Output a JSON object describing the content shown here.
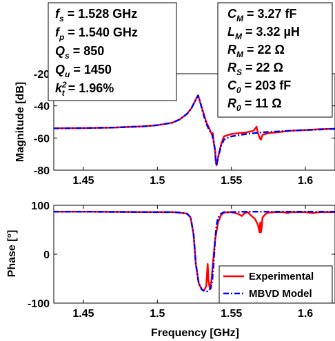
{
  "chart_data": [
    {
      "type": "line",
      "xlabel": "",
      "ylabel": "Magnitude [dB]",
      "xlim": [
        1.43,
        1.62
      ],
      "ylim": [
        -80,
        -20
      ],
      "xticks": [
        "1.45",
        "1.5",
        "1.55",
        "1.6"
      ],
      "yticks": [
        "-20",
        "-40",
        "-60",
        "-80"
      ],
      "grid": false,
      "parameters_box_left": [
        {
          "sym": "f",
          "sub": "s",
          "sup": "",
          "val": " = 1.528 GHz"
        },
        {
          "sym": "f",
          "sub": "p",
          "sup": "",
          "val": " = 1.540 GHz"
        },
        {
          "sym": "Q",
          "sub": "s",
          "sup": "",
          "val": " = 850"
        },
        {
          "sym": "Q",
          "sub": "u",
          "sup": "",
          "val": " = 1450"
        },
        {
          "sym": "k",
          "sub": "t",
          "sup": "2",
          "val": " = 1.96%"
        }
      ],
      "parameters_box_right": [
        {
          "sym": "C",
          "sub": "M",
          "sup": "",
          "val": " = 3.27 fF"
        },
        {
          "sym": "L",
          "sub": "M",
          "sup": "",
          "val": " = 3.32 µH"
        },
        {
          "sym": "R",
          "sub": "M",
          "sup": "",
          "val": " = 22 Ω"
        },
        {
          "sym": "R",
          "sub": "S",
          "sup": "",
          "val": " = 22 Ω"
        },
        {
          "sym": "C",
          "sub": "0",
          "sup": "",
          "val": " = 203 fF"
        },
        {
          "sym": "R",
          "sub": "0",
          "sup": "",
          "val": " = 11 Ω"
        }
      ],
      "series": [
        {
          "name": "Experimental",
          "color": "#ff0000",
          "x": [
            1.43,
            1.45,
            1.47,
            1.49,
            1.5,
            1.51,
            1.515,
            1.52,
            1.523,
            1.526,
            1.5275,
            1.529,
            1.531,
            1.533,
            1.535,
            1.536,
            1.537,
            1.5375,
            1.538,
            1.539,
            1.5395,
            1.54,
            1.541,
            1.543,
            1.545,
            1.55,
            1.555,
            1.56,
            1.565,
            1.567,
            1.568,
            1.569,
            1.57,
            1.571,
            1.573,
            1.575,
            1.58,
            1.59,
            1.6,
            1.61,
            1.62
          ],
          "y": [
            -54,
            -53.8,
            -53.5,
            -52.8,
            -52,
            -50.5,
            -48.5,
            -45,
            -41.5,
            -36,
            -33.5,
            -38,
            -44,
            -50,
            -54,
            -56,
            -58,
            -57,
            -62,
            -68,
            -75,
            -77,
            -72,
            -64,
            -59,
            -57.5,
            -57,
            -56.5,
            -55.5,
            -53,
            -57,
            -60,
            -61,
            -58,
            -57.5,
            -57,
            -56.5,
            -55.5,
            -55,
            -54.5,
            -54.3
          ]
        },
        {
          "name": "MBVD Model",
          "color": "#0000ff",
          "x": [
            1.43,
            1.45,
            1.47,
            1.49,
            1.5,
            1.51,
            1.515,
            1.52,
            1.523,
            1.526,
            1.5275,
            1.529,
            1.531,
            1.533,
            1.535,
            1.537,
            1.538,
            1.539,
            1.5395,
            1.54,
            1.541,
            1.543,
            1.545,
            1.55,
            1.56,
            1.57,
            1.58,
            1.59,
            1.6,
            1.61,
            1.62
          ],
          "y": [
            -54,
            -53.8,
            -53.5,
            -52.8,
            -52,
            -50.5,
            -48.5,
            -45,
            -41.5,
            -36,
            -33.5,
            -38,
            -45,
            -51,
            -55,
            -58,
            -62,
            -68,
            -75,
            -77,
            -72,
            -65,
            -61,
            -59,
            -57.5,
            -56.5,
            -56,
            -55.5,
            -55,
            -54.7,
            -54.3
          ]
        }
      ]
    },
    {
      "type": "line",
      "xlabel": "Frequency [GHz]",
      "ylabel": "Phase [°]",
      "xlim": [
        1.43,
        1.62
      ],
      "ylim": [
        -100,
        100
      ],
      "xticks": [
        "1.45",
        "1.5",
        "1.55",
        "1.6"
      ],
      "yticks": [
        "100",
        "0",
        "-100"
      ],
      "grid": false,
      "legend_position": "bottom-right",
      "series": [
        {
          "name": "Experimental",
          "color": "#ff0000",
          "x": [
            1.43,
            1.45,
            1.5,
            1.51,
            1.515,
            1.52,
            1.5225,
            1.5245,
            1.526,
            1.528,
            1.53,
            1.531,
            1.532,
            1.533,
            1.5335,
            1.534,
            1.5345,
            1.5355,
            1.5365,
            1.5375,
            1.539,
            1.541,
            1.543,
            1.545,
            1.55,
            1.555,
            1.557,
            1.559,
            1.561,
            1.563,
            1.566,
            1.568,
            1.569,
            1.5695,
            1.57,
            1.5705,
            1.571,
            1.573,
            1.575,
            1.58,
            1.585,
            1.588,
            1.59,
            1.595,
            1.6,
            1.605,
            1.61,
            1.615,
            1.62
          ],
          "y": [
            87,
            87,
            86,
            86,
            85,
            83,
            75,
            40,
            -20,
            -60,
            -72,
            -74,
            -72,
            -65,
            -40,
            -20,
            -55,
            -70,
            -55,
            -20,
            30,
            65,
            80,
            85,
            86,
            82,
            78,
            84,
            86,
            80,
            72,
            60,
            45,
            65,
            45,
            55,
            75,
            82,
            85,
            86,
            86,
            84,
            86,
            86,
            86,
            84,
            86,
            86,
            86
          ]
        },
        {
          "name": "MBVD Model",
          "color": "#0000ff",
          "x": [
            1.43,
            1.45,
            1.5,
            1.51,
            1.515,
            1.52,
            1.5225,
            1.5245,
            1.526,
            1.528,
            1.53,
            1.532,
            1.534,
            1.536,
            1.537,
            1.538,
            1.539,
            1.54,
            1.541,
            1.543,
            1.545,
            1.55,
            1.56,
            1.57,
            1.58,
            1.59,
            1.6,
            1.61,
            1.62
          ],
          "y": [
            87,
            87,
            86,
            86,
            85,
            83,
            75,
            40,
            -20,
            -60,
            -72,
            -76,
            -76,
            -70,
            -55,
            -20,
            30,
            60,
            75,
            83,
            86,
            86,
            87,
            87,
            87,
            87,
            87,
            87,
            87
          ]
        }
      ]
    }
  ]
}
